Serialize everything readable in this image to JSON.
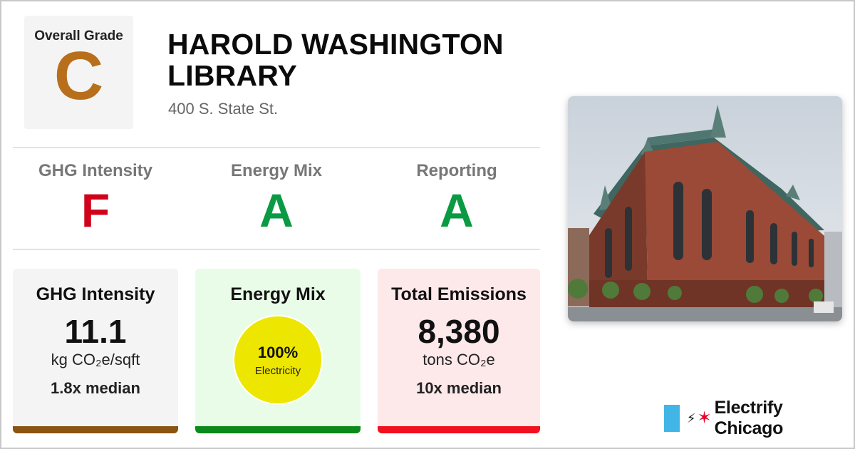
{
  "overall": {
    "label": "Overall Grade",
    "grade": "C",
    "grade_color": "#b86f1b"
  },
  "building": {
    "name": "HAROLD WASHINGTON LIBRARY",
    "address": "400 S. State St."
  },
  "grades": [
    {
      "label": "GHG Intensity",
      "grade": "F",
      "color": "#d0021b"
    },
    {
      "label": "Energy Mix",
      "grade": "A",
      "color": "#0a9a43"
    },
    {
      "label": "Reporting",
      "grade": "A",
      "color": "#0a9a43"
    }
  ],
  "cards": {
    "ghg": {
      "title": "GHG Intensity",
      "value": "11.1",
      "unit": "kg CO₂e/sqft",
      "median": "1.8x median",
      "bg": "#f4f4f4",
      "bar": "#8b5410"
    },
    "mix": {
      "title": "Energy Mix",
      "percent": "100%",
      "source": "Electricity",
      "bg": "#e9fce7",
      "bar": "#0a8a1a"
    },
    "emissions": {
      "title": "Total Emissions",
      "value": "8,380",
      "unit": "tons CO₂e",
      "median": "10x median",
      "bg": "#fde8ea",
      "bar": "#f0101f"
    }
  },
  "photo": {
    "icon": "building-photo"
  },
  "logo": {
    "name": "Electrify Chicago",
    "plug_icon": "plug-icon",
    "star_icon": "star-icon"
  }
}
